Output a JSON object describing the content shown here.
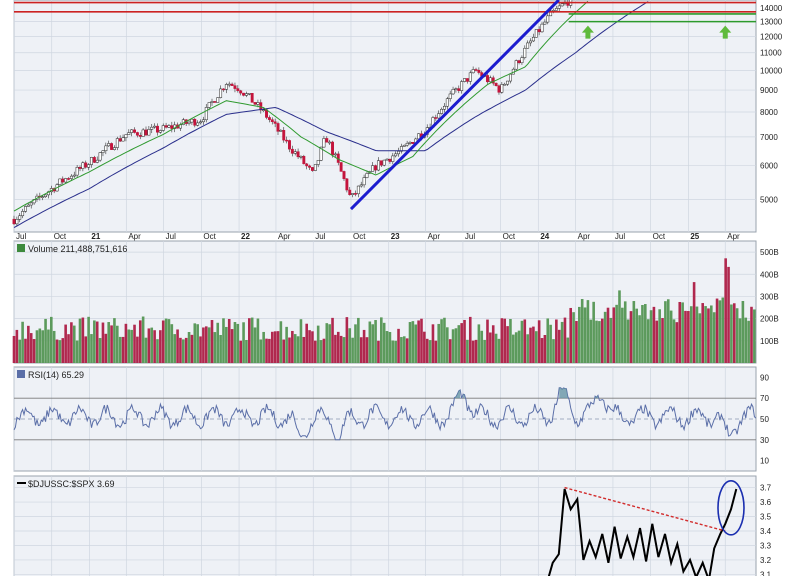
{
  "colors": {
    "panel_bg": "#eef1f6",
    "panel_border": "#9aa3ae",
    "grid": "#cfd6e0",
    "text": "#222222",
    "up": "#3d8a3d",
    "down": "#c4143c",
    "sma_short": "#2f9a2f",
    "sma_long": "#2a2f8c",
    "trendline": "#1c1ccf",
    "resistance": "#cc2222",
    "support": "#2c9a2c",
    "arrow": "#5fba3c",
    "rsi_line": "#5b6fa8",
    "rsi_fill": "#5e8fa0",
    "ratio_line": "#000000",
    "dashed_trend": "#d22c2c",
    "circle": "#1b2fb0"
  },
  "chart_data": [
    {
      "type": "candlestick",
      "title": "",
      "y_scale": "log",
      "ylim": [
        4200,
        14600
      ],
      "y_ticks": [
        "13000",
        "12000",
        "11000",
        "10000",
        "9000",
        "8000",
        "7000",
        "6000",
        "5000"
      ],
      "y_tick_partial": "14000",
      "x_ticks": [
        "Jul",
        "Oct",
        "21",
        "Apr",
        "Jul",
        "Oct",
        "22",
        "Apr",
        "Jul",
        "Oct",
        "23",
        "Apr",
        "Jul",
        "Oct",
        "24",
        "Apr",
        "Jul",
        "Oct",
        "25",
        "Apr"
      ],
      "x_range": [
        "2020-07",
        "2025-06"
      ],
      "anchors": [
        [
          "2020-07-01",
          4500
        ],
        [
          "2020-10-01",
          5300
        ],
        [
          "2021-01-01",
          6100
        ],
        [
          "2021-04-01",
          7100
        ],
        [
          "2021-07-01",
          7300
        ],
        [
          "2021-10-01",
          7700
        ],
        [
          "2021-12-01",
          9400
        ],
        [
          "2022-01-01",
          9100
        ],
        [
          "2022-03-01",
          8000
        ],
        [
          "2022-05-01",
          6700
        ],
        [
          "2022-07-01",
          5700
        ],
        [
          "2022-08-01",
          7000
        ],
        [
          "2022-10-01",
          5000
        ],
        [
          "2022-12-01",
          6000
        ],
        [
          "2023-02-01",
          6500
        ],
        [
          "2023-04-01",
          7300
        ],
        [
          "2023-06-01",
          8700
        ],
        [
          "2023-08-01",
          10000
        ],
        [
          "2023-10-01",
          9000
        ],
        [
          "2023-12-01",
          11200
        ],
        [
          "2024-02-01",
          13500
        ],
        [
          "2024-04-01",
          15000
        ]
      ],
      "sma_short": [
        [
          "2020-07-01",
          4700
        ],
        [
          "2021-01-01",
          5800
        ],
        [
          "2021-07-01",
          7100
        ],
        [
          "2021-12-01",
          8500
        ],
        [
          "2022-03-01",
          8200
        ],
        [
          "2022-06-01",
          7000
        ],
        [
          "2022-09-01",
          6200
        ],
        [
          "2022-12-01",
          5700
        ],
        [
          "2023-03-01",
          6300
        ],
        [
          "2023-06-01",
          7800
        ],
        [
          "2023-09-01",
          9300
        ],
        [
          "2023-12-01",
          10200
        ],
        [
          "2024-03-01",
          12800
        ],
        [
          "2024-05-01",
          14500
        ]
      ],
      "sma_long": [
        [
          "2020-07-01",
          4300
        ],
        [
          "2021-01-01",
          5300
        ],
        [
          "2021-07-01",
          6600
        ],
        [
          "2021-12-01",
          7900
        ],
        [
          "2022-04-01",
          8200
        ],
        [
          "2022-08-01",
          7200
        ],
        [
          "2022-12-01",
          6500
        ],
        [
          "2023-04-01",
          6500
        ],
        [
          "2023-08-01",
          7800
        ],
        [
          "2023-12-01",
          9000
        ],
        [
          "2024-04-01",
          11000
        ],
        [
          "2024-10-01",
          14600
        ]
      ],
      "trendline": [
        [
          "2022-10-01",
          4750
        ],
        [
          "2024-02-20",
          14600
        ]
      ],
      "resistance_lines": [
        14400,
        13700
      ],
      "support_lines": [
        13550,
        13000
      ],
      "support_arrows": [
        "2024-05-01",
        "2025-04-01"
      ],
      "legend_position": "none"
    },
    {
      "type": "bar",
      "label": "Volume 211,488,751,616",
      "y_unit": "B",
      "y_ticks": [
        "500B",
        "400B",
        "300B",
        "200B",
        "100B"
      ],
      "ylim": [
        0,
        550
      ],
      "x_range": [
        "2020-07",
        "2025-06"
      ],
      "baseline_range": [
        100,
        210
      ],
      "spikes": [
        [
          "2024-04-15",
          300
        ],
        [
          "2024-05-01",
          280
        ],
        [
          "2024-07-15",
          340
        ],
        [
          "2024-08-01",
          260
        ],
        [
          "2024-09-15",
          290
        ],
        [
          "2024-11-15",
          270
        ],
        [
          "2024-12-15",
          300
        ],
        [
          "2025-01-15",
          360
        ],
        [
          "2025-02-15",
          290
        ],
        [
          "2025-03-15",
          330
        ],
        [
          "2025-04-05",
          530
        ],
        [
          "2025-04-20",
          300
        ]
      ]
    },
    {
      "type": "line",
      "label": "RSI(14) 65.29",
      "y_ticks": [
        "90",
        "70",
        "50",
        "30",
        "10"
      ],
      "ylim": [
        0,
        100
      ],
      "reference_lines": [
        70,
        50,
        30
      ],
      "x_range": [
        "2020-07",
        "2025-06"
      ],
      "peaks_above_70": [
        "2023-07-01",
        "2024-03-01",
        "2024-06-01"
      ],
      "troughs_near_35": [
        "2022-06-01",
        "2022-09-01",
        "2025-04-10"
      ]
    },
    {
      "type": "line",
      "label": "$DJUSSC:$SPX 3.69",
      "y_ticks": [
        "3.7",
        "3.6",
        "3.5",
        "3.4",
        "3.3",
        "3.2",
        "3.1"
      ],
      "ylim": [
        3.02,
        3.78
      ],
      "x_range": [
        "2020-07",
        "2025-06"
      ],
      "series": [
        [
          "2024-01-01",
          3.0
        ],
        [
          "2024-01-20",
          3.02
        ],
        [
          "2024-02-05",
          3.18
        ],
        [
          "2024-02-20",
          3.24
        ],
        [
          "2024-03-05",
          3.69
        ],
        [
          "2024-03-20",
          3.55
        ],
        [
          "2024-04-05",
          3.62
        ],
        [
          "2024-04-20",
          3.2
        ],
        [
          "2024-05-05",
          3.33
        ],
        [
          "2024-05-20",
          3.22
        ],
        [
          "2024-06-05",
          3.38
        ],
        [
          "2024-06-20",
          3.18
        ],
        [
          "2024-07-05",
          3.43
        ],
        [
          "2024-07-20",
          3.21
        ],
        [
          "2024-08-05",
          3.36
        ],
        [
          "2024-08-20",
          3.22
        ],
        [
          "2024-09-05",
          3.42
        ],
        [
          "2024-09-20",
          3.19
        ],
        [
          "2024-10-05",
          3.45
        ],
        [
          "2024-10-20",
          3.22
        ],
        [
          "2024-11-05",
          3.38
        ],
        [
          "2024-11-20",
          3.18
        ],
        [
          "2024-12-05",
          3.31
        ],
        [
          "2024-12-20",
          3.12
        ],
        [
          "2025-01-05",
          3.2
        ],
        [
          "2025-01-20",
          3.08
        ],
        [
          "2025-02-05",
          3.18
        ],
        [
          "2025-02-20",
          3.06
        ],
        [
          "2025-03-05",
          3.28
        ],
        [
          "2025-03-20",
          3.38
        ],
        [
          "2025-04-01",
          3.45
        ],
        [
          "2025-04-15",
          3.55
        ],
        [
          "2025-04-28",
          3.69
        ]
      ],
      "dashed_trendline": [
        [
          "2024-03-05",
          3.7
        ],
        [
          "2025-04-01",
          3.4
        ]
      ],
      "highlight_circle_at": [
        "2025-04-15",
        3.56
      ]
    }
  ]
}
